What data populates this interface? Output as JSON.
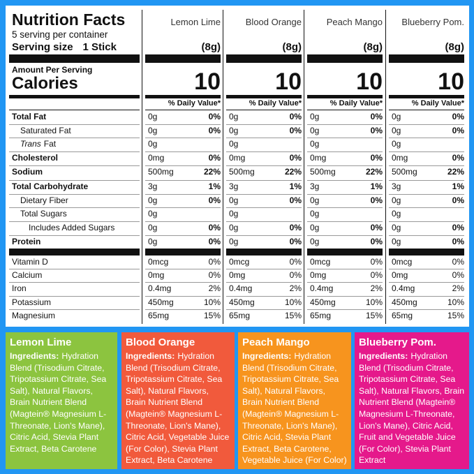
{
  "header": {
    "title": "Nutrition Facts",
    "servings": "5 serving per container",
    "serving_size_label": "Serving size",
    "serving_size": "1 Stick",
    "amount_per_serving": "Amount Per Serving",
    "calories_label": "Calories",
    "daily_value_header": "% Daily Value*"
  },
  "rows": [
    {
      "label": "Total Fat",
      "style": "bold"
    },
    {
      "label": "Saturated Fat",
      "style": "indent"
    },
    {
      "label_italic": "Trans",
      "label": "Fat",
      "style": "indent"
    },
    {
      "label": "Cholesterol",
      "style": "bold"
    },
    {
      "label": "Sodium",
      "style": "bold"
    },
    {
      "label": "Total Carbohydrate",
      "style": "bold"
    },
    {
      "label": "Dietary Fiber",
      "style": "indent"
    },
    {
      "label": "Total Sugars",
      "style": "indent"
    },
    {
      "label": "Includes Added Sugars",
      "style": "indent2"
    },
    {
      "label": "Protein",
      "style": "bold"
    },
    {
      "label": "Vitamin D",
      "style": "vitamin"
    },
    {
      "label": "Calcium",
      "style": "vitamin"
    },
    {
      "label": "Iron",
      "style": "vitamin"
    },
    {
      "label": "Potassium",
      "style": "vitamin"
    },
    {
      "label": "Magnesium",
      "style": "vitamin"
    }
  ],
  "products": [
    {
      "name": "Lemon Lime",
      "serving_weight": "(8g)",
      "calories": "10",
      "color": "#8cc43f",
      "values": [
        [
          "0g",
          "0%"
        ],
        [
          "0g",
          "0%"
        ],
        [
          "0g",
          null
        ],
        [
          "0mg",
          "0%"
        ],
        [
          "500mg",
          "22%"
        ],
        [
          "3g",
          "1%"
        ],
        [
          "0g",
          "0%"
        ],
        [
          "0g",
          null
        ],
        [
          "0g",
          "0%"
        ],
        [
          "0g",
          "0%"
        ],
        [
          "0mcg",
          "0%"
        ],
        [
          "0mg",
          "0%"
        ],
        [
          "0.4mg",
          "2%"
        ],
        [
          "450mg",
          "10%"
        ],
        [
          "65mg",
          "15%"
        ]
      ],
      "ingredients_label": "Ingredients:",
      "ingredients": "Hydration Blend (Trisodium Citrate, Tripotassium Citrate, Sea Salt), Natural Flavors, Brain Nutrient Blend (Magtein® Magnesium L-Threonate, Lion's Mane), Citric Acid, Stevia Plant Extract, Beta Carotene"
    },
    {
      "name": "Blood Orange",
      "serving_weight": "(8g)",
      "calories": "10",
      "color": "#f15a3c",
      "values": [
        [
          "0g",
          "0%"
        ],
        [
          "0g",
          "0%"
        ],
        [
          "0g",
          null
        ],
        [
          "0mg",
          "0%"
        ],
        [
          "500mg",
          "22%"
        ],
        [
          "3g",
          "1%"
        ],
        [
          "0g",
          "0%"
        ],
        [
          "0g",
          null
        ],
        [
          "0g",
          "0%"
        ],
        [
          "0g",
          "0%"
        ],
        [
          "0mcg",
          "0%"
        ],
        [
          "0mg",
          "0%"
        ],
        [
          "0.4mg",
          "2%"
        ],
        [
          "450mg",
          "10%"
        ],
        [
          "65mg",
          "15%"
        ]
      ],
      "ingredients_label": "Ingredients:",
      "ingredients": "Hydration Blend (Trisodium Citrate, Tripotassium Citrate, Sea Salt), Natural Flavors, Brain Nutrient Blend (Magtein® Magnesium L-Threonate, Lion's Mane), Citric Acid, Vegetable Juice (For Color), Stevia Plant Extract, Beta Carotene"
    },
    {
      "name": "Peach Mango",
      "serving_weight": "(8g)",
      "calories": "10",
      "color": "#f7941e",
      "values": [
        [
          "0g",
          "0%"
        ],
        [
          "0g",
          "0%"
        ],
        [
          "0g",
          null
        ],
        [
          "0mg",
          "0%"
        ],
        [
          "500mg",
          "22%"
        ],
        [
          "3g",
          "1%"
        ],
        [
          "0g",
          "0%"
        ],
        [
          "0g",
          null
        ],
        [
          "0g",
          "0%"
        ],
        [
          "0g",
          "0%"
        ],
        [
          "0mcg",
          "0%"
        ],
        [
          "0mg",
          "0%"
        ],
        [
          "0.4mg",
          "2%"
        ],
        [
          "450mg",
          "10%"
        ],
        [
          "65mg",
          "15%"
        ]
      ],
      "ingredients_label": "Ingredients:",
      "ingredients": "Hydration Blend (Trisodium Citrate, Tripotassium Citrate, Sea Salt), Natural Flavors, Brain Nutrient Blend (Magtein® Magnesium L-Threonate, Lion's Mane), Citric Acid, Stevia Plant Extract, Beta Carotene, Vegetable Juice (For Color)"
    },
    {
      "name": "Blueberry Pom.",
      "serving_weight": "(8g)",
      "calories": "10",
      "color": "#e5198b",
      "values": [
        [
          "0g",
          "0%"
        ],
        [
          "0g",
          "0%"
        ],
        [
          "0g",
          null
        ],
        [
          "0mg",
          "0%"
        ],
        [
          "500mg",
          "22%"
        ],
        [
          "3g",
          "1%"
        ],
        [
          "0g",
          "0%"
        ],
        [
          "0g",
          null
        ],
        [
          "0g",
          "0%"
        ],
        [
          "0g",
          "0%"
        ],
        [
          "0mcg",
          "0%"
        ],
        [
          "0mg",
          "0%"
        ],
        [
          "0.4mg",
          "2%"
        ],
        [
          "450mg",
          "10%"
        ],
        [
          "65mg",
          "15%"
        ]
      ],
      "ingredients_label": "Ingredients:",
      "ingredients": "Hydration Blend (Trisodium Citrate, Tripotassium Citrate, Sea Salt), Natural Flavors, Brain Nutrient Blend (Magtein® Magnesium L-Threonate, Lion's Mane), Citric Acid, Fruit and Vegetable Juice (For Color), Stevia Plant Extract"
    }
  ]
}
